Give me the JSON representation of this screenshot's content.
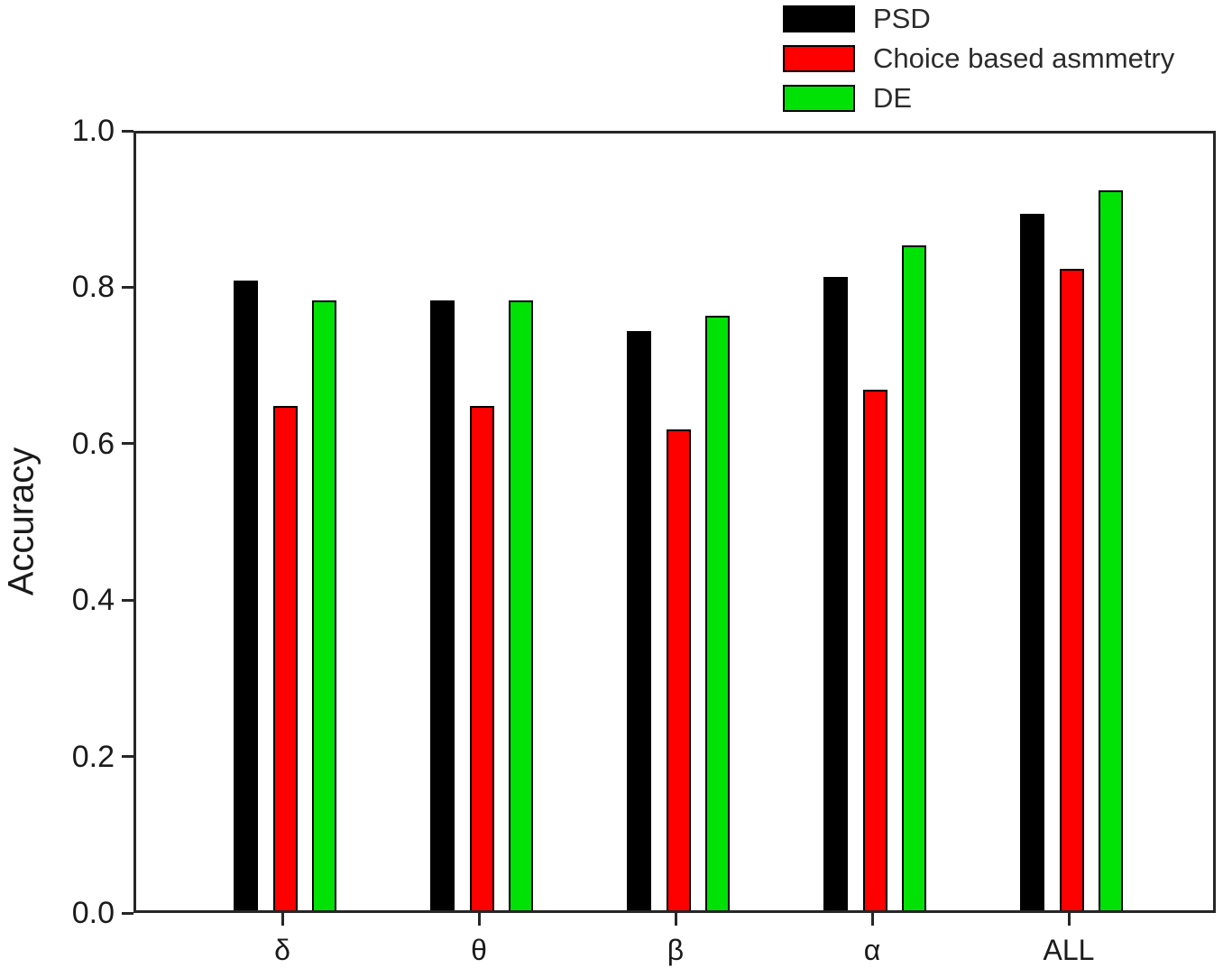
{
  "chart_data": {
    "type": "bar",
    "title": "",
    "xlabel": "",
    "ylabel": "Accuracy",
    "categories": [
      "δ",
      "θ",
      "β",
      "α",
      "ALL"
    ],
    "series": [
      {
        "name": "PSD",
        "color": "#000000",
        "values": [
          0.805,
          0.78,
          0.74,
          0.81,
          0.89
        ]
      },
      {
        "name": "Choice based asmmetry",
        "color": "#fe0000",
        "values": [
          0.645,
          0.645,
          0.615,
          0.665,
          0.82
        ]
      },
      {
        "name": "DE",
        "color": "#00e106",
        "values": [
          0.78,
          0.78,
          0.76,
          0.85,
          0.92
        ]
      }
    ],
    "ylim": [
      0.0,
      1.0
    ],
    "yticks": [
      0.0,
      0.2,
      0.4,
      0.6,
      0.8,
      1.0
    ],
    "ytick_labels": [
      "0.0",
      "0.2",
      "0.4",
      "0.6",
      "0.8",
      "1.0"
    ],
    "grid": false,
    "legend_position": "top-right",
    "axis_color": "#262626",
    "bar_outline_color": "#000000"
  }
}
